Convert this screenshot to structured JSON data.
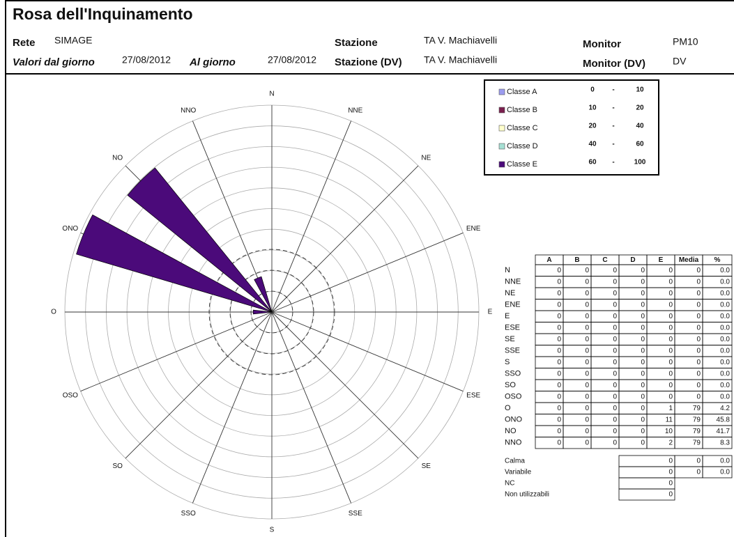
{
  "header": {
    "title": "Rosa dell'Inquinamento",
    "fields": [
      {
        "label": "Rete",
        "value": "SIMAGE"
      },
      {
        "label": "Stazione",
        "value": "TA V. Machiavelli"
      },
      {
        "label": "Monitor",
        "value": "PM10"
      },
      {
        "label": "Valori dal giorno",
        "value": "27/08/2012"
      },
      {
        "label": "Al giorno",
        "value": "27/08/2012"
      },
      {
        "label": "Stazione (DV)",
        "value": "TA V. Machiavelli"
      },
      {
        "label": "Monitor (DV)",
        "value": "DV"
      }
    ]
  },
  "legend": {
    "rows": [
      {
        "label": "Classe A",
        "from": 0,
        "dash": "-",
        "to": 10,
        "color": "#9c9cf0"
      },
      {
        "label": "Classe B",
        "from": 10,
        "dash": "-",
        "to": 20,
        "color": "#7a1f4e"
      },
      {
        "label": "Classe C",
        "from": 20,
        "dash": "-",
        "to": 40,
        "color": "#ffffcc"
      },
      {
        "label": "Classe D",
        "from": 40,
        "dash": "-",
        "to": 60,
        "color": "#a6e0d4"
      },
      {
        "label": "Classe E",
        "from": 60,
        "dash": "-",
        "to": 100,
        "color": "#4b0a7a"
      }
    ]
  },
  "chart_data": {
    "type": "rose",
    "categories": [
      "N",
      "NNE",
      "NE",
      "ENE",
      "E",
      "ESE",
      "SE",
      "SSE",
      "S",
      "SSO",
      "SO",
      "OSO",
      "O",
      "ONO",
      "NO",
      "NNO"
    ],
    "values": [
      0,
      0,
      0,
      0,
      0,
      0,
      0,
      0,
      0,
      0,
      0,
      0,
      4.2,
      45.8,
      41.7,
      8.3
    ],
    "rlim": [
      0,
      46.5
    ],
    "color": "#4b0a7a"
  },
  "table": {
    "columns": [
      "A",
      "B",
      "C",
      "D",
      "E",
      "Media",
      "%"
    ],
    "rows": [
      [
        "N",
        "0",
        "0",
        "0",
        "0",
        "0",
        "0",
        "0.0"
      ],
      [
        "NNE",
        "0",
        "0",
        "0",
        "0",
        "0",
        "0",
        "0.0"
      ],
      [
        "NE",
        "0",
        "0",
        "0",
        "0",
        "0",
        "0",
        "0.0"
      ],
      [
        "ENE",
        "0",
        "0",
        "0",
        "0",
        "0",
        "0",
        "0.0"
      ],
      [
        "E",
        "0",
        "0",
        "0",
        "0",
        "0",
        "0",
        "0.0"
      ],
      [
        "ESE",
        "0",
        "0",
        "0",
        "0",
        "0",
        "0",
        "0.0"
      ],
      [
        "SE",
        "0",
        "0",
        "0",
        "0",
        "0",
        "0",
        "0.0"
      ],
      [
        "SSE",
        "0",
        "0",
        "0",
        "0",
        "0",
        "0",
        "0.0"
      ],
      [
        "S",
        "0",
        "0",
        "0",
        "0",
        "0",
        "0",
        "0.0"
      ],
      [
        "SSO",
        "0",
        "0",
        "0",
        "0",
        "0",
        "0",
        "0.0"
      ],
      [
        "SO",
        "0",
        "0",
        "0",
        "0",
        "0",
        "0",
        "0.0"
      ],
      [
        "OSO",
        "0",
        "0",
        "0",
        "0",
        "0",
        "0",
        "0.0"
      ],
      [
        "O",
        "0",
        "0",
        "0",
        "0",
        "1",
        "79",
        "4.2"
      ],
      [
        "ONO",
        "0",
        "0",
        "0",
        "0",
        "11",
        "79",
        "45.8"
      ],
      [
        "NO",
        "0",
        "0",
        "0",
        "0",
        "10",
        "79",
        "41.7"
      ],
      [
        "NNO",
        "0",
        "0",
        "0",
        "0",
        "2",
        "79",
        "8.3"
      ]
    ],
    "summary": [
      [
        "Calma",
        "0",
        "0",
        "0.0"
      ],
      [
        "Variabile",
        "0",
        "0",
        "0.0"
      ],
      [
        "NC",
        "0"
      ],
      [
        "Non utilizzabili",
        "0"
      ]
    ]
  }
}
